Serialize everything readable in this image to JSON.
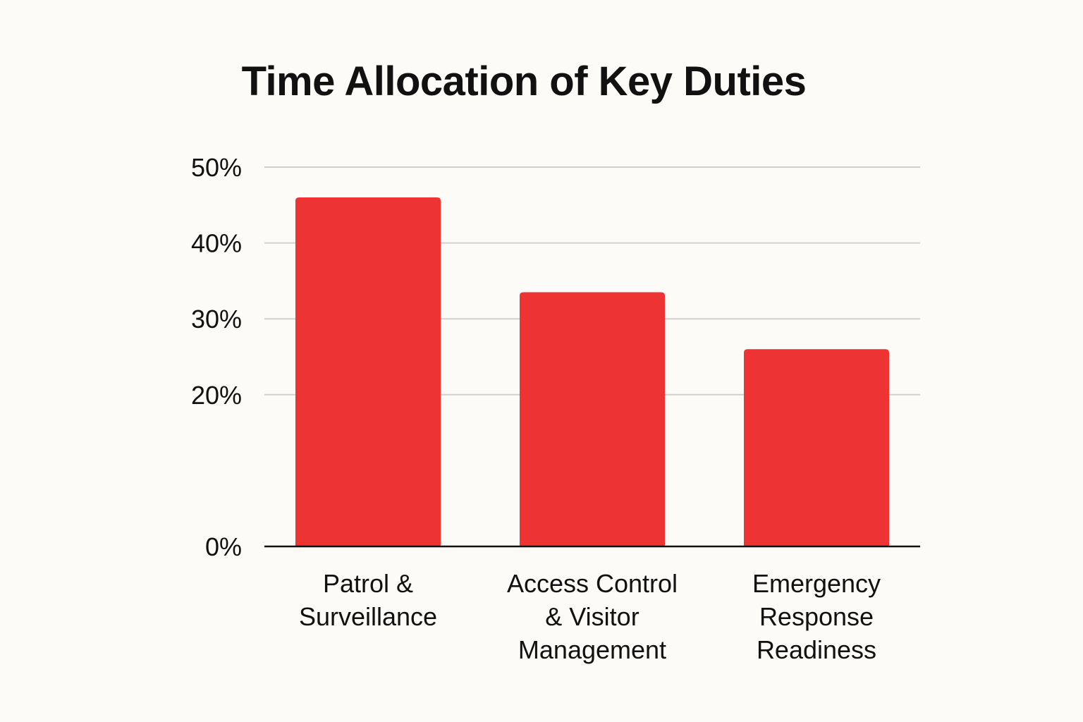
{
  "chart_data": {
    "type": "bar",
    "title": "Time Allocation of Key Duties",
    "categories": [
      [
        "Patrol &",
        "Surveillance"
      ],
      [
        "Access Control",
        "& Visitor",
        "Management"
      ],
      [
        "Emergency",
        "Response",
        "Readiness"
      ]
    ],
    "values": [
      46,
      33.5,
      26
    ],
    "ylim": [
      0,
      50
    ],
    "yticks": [
      0,
      20,
      30,
      40,
      50
    ],
    "ytick_labels": [
      "0%",
      "20%",
      "30%",
      "40%",
      "50%"
    ],
    "xlabel": "",
    "ylabel": "",
    "grid": true,
    "bar_color": "#ee3333",
    "grid_color": "#d0d0d0",
    "axis_color": "#111111"
  }
}
